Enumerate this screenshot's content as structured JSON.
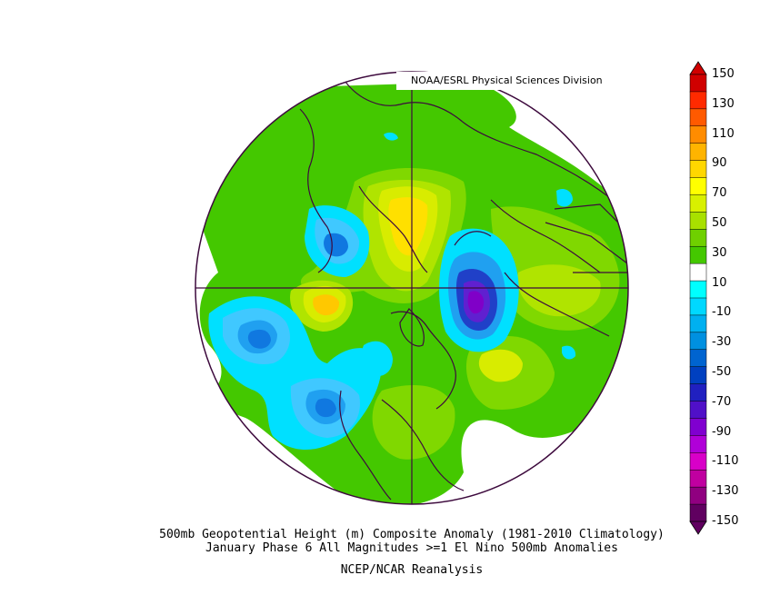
{
  "credit": "NOAA/ESRL Physical Sciences Division",
  "caption": {
    "line1": "500mb Geopotential Height (m) Composite Anomaly (1981-2010 Climatology)",
    "line2": "January Phase 6 All Magnitudes >=1 El Nino 500mb Anomalies",
    "source": "NCEP/NCAR Reanalysis"
  },
  "colorbar": {
    "labels": [
      "150",
      "130",
      "110",
      "90",
      "70",
      "50",
      "30",
      "10",
      "-10",
      "-30",
      "-50",
      "-70",
      "-90",
      "-110",
      "-130",
      "-150"
    ],
    "colors": [
      "#d00000",
      "#ff2a00",
      "#ff5a00",
      "#ff8c00",
      "#ffb400",
      "#ffd700",
      "#ffff00",
      "#d8f000",
      "#a8e000",
      "#6fd000",
      "#44c800",
      "#ffffff",
      "#00ffff",
      "#00d8ff",
      "#00b0f0",
      "#0090e0",
      "#0064d0",
      "#0040c0",
      "#2020c0",
      "#5010c8",
      "#8000d0",
      "#b000d8",
      "#d800c8",
      "#c000a0",
      "#900080",
      "#600060"
    ]
  },
  "map": {
    "projection": "north-polar-stereographic",
    "colors": {
      "boundary": "#3d0a3d",
      "neutral": "#ffffff",
      "pos10": "#44c800",
      "pos20": "#80d800",
      "pos30": "#b0e400",
      "pos40": "#d8ec00",
      "pos60": "#ffe000",
      "pos80": "#ffc800",
      "neg10": "#00e0ff",
      "neg20": "#40c8ff",
      "neg30": "#20a0f0",
      "neg40": "#1078e0",
      "neg60": "#2040c8",
      "neg80": "#6020d0",
      "neg90": "#8000c8"
    }
  }
}
